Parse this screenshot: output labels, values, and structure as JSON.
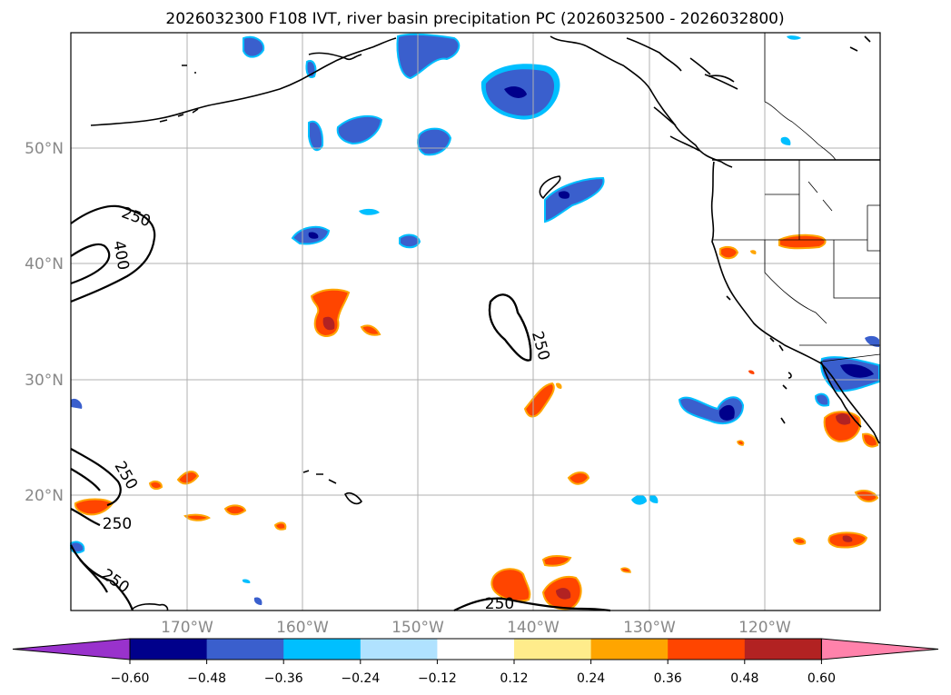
{
  "title": "2026032300 F108 IVT, river basin precipitation PC (2026032500 - 2026032800)",
  "lat_labels": [
    "50°N",
    "40°N",
    "30°N",
    "20°N"
  ],
  "lon_labels": [
    "170°W",
    "160°W",
    "150°W",
    "140°W",
    "130°W",
    "120°W"
  ],
  "ivt_labels": [
    "250",
    "400",
    "250",
    "250",
    "250",
    "250",
    "250"
  ],
  "colorbar": {
    "ticks": [
      "−0.60",
      "−0.48",
      "−0.36",
      "−0.24",
      "−0.12",
      "0.12",
      "0.24",
      "0.36",
      "0.48",
      "0.60"
    ],
    "colors": [
      "#9932cc",
      "#00008b",
      "#3a5fcd",
      "#00bfff",
      "#b0e2ff",
      "#ffffff",
      "#ffec8b",
      "#ffa500",
      "#ff4500",
      "#b22222",
      "#ff82ab"
    ]
  },
  "map": {
    "extent_lon": [
      -180,
      -110
    ],
    "extent_lat": [
      10,
      60
    ],
    "contour_field": "IVT",
    "shaded_field": "river basin precipitation PC"
  }
}
